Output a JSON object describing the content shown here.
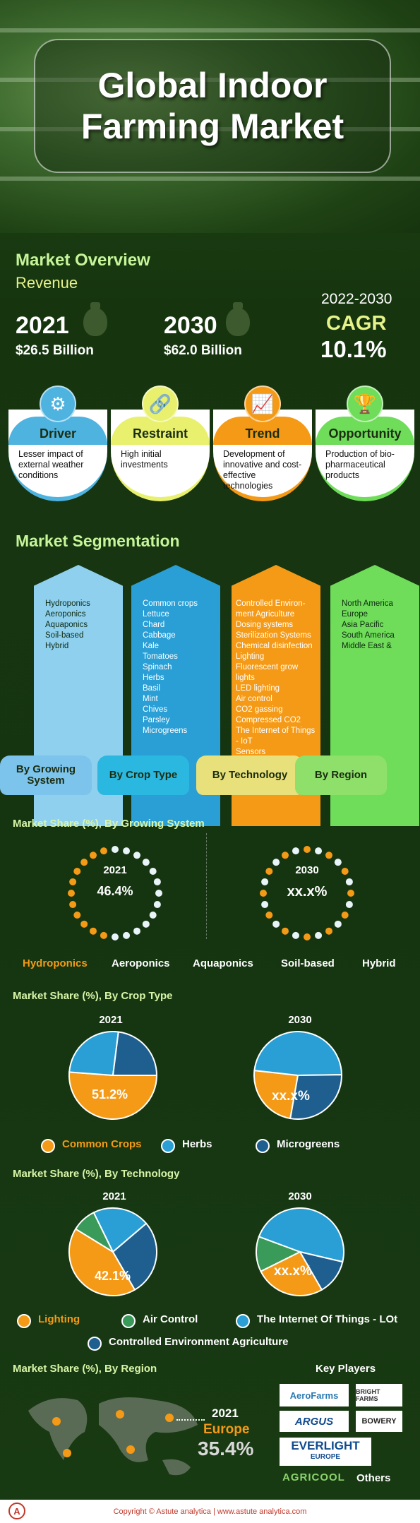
{
  "title": "Global Indoor Farming Market",
  "overview": {
    "heading": "Market Overview",
    "revenue_label": "Revenue",
    "year_a": "2021",
    "value_a": "$26.5  Billion",
    "year_b": "2030",
    "value_b": "$62.0 Billion",
    "period": "2022-2030",
    "cagr_label": "CAGR",
    "cagr_value": "10.1%"
  },
  "dynamics": [
    {
      "label": "Driver",
      "text": "Lesser impact of external weather conditions",
      "color": "#4fb3e0",
      "icon": "gears-icon"
    },
    {
      "label": "Restraint",
      "text": "High initial investments",
      "color": "#e8f06e",
      "icon": "chain-link-icon"
    },
    {
      "label": "Trend",
      "text": "Development of innovative and cost-effective technologies",
      "color": "#f59a16",
      "icon": "growth-chart-icon"
    },
    {
      "label": "Opportunity",
      "text": "Production of bio-pharmaceutical products",
      "color": "#6fdc5a",
      "icon": "trophy-icon"
    }
  ],
  "segmentation": {
    "heading": "Market Segmentation",
    "columns": [
      {
        "tab": "By Growing System",
        "items": [
          "Hydroponics",
          "Aeroponics",
          "Aquaponics",
          "Soil-based",
          "Hybrid"
        ]
      },
      {
        "tab": "By Crop Type",
        "items": [
          "Common crops",
          "Lettuce",
          "Chard",
          "Cabbage",
          "Kale",
          "Tomatoes",
          "Spinach",
          "Herbs",
          "Basil",
          "Mint",
          "Chives",
          "Parsley",
          "Microgreens"
        ]
      },
      {
        "tab": "By Technology",
        "items": [
          "Controlled Environ-",
          "ment Agriculture",
          "Dosing systems",
          "Sterilization Systems",
          "Chemical disinfection",
          "Lighting",
          "Fluorescent grow",
          "lights",
          "LED lighting",
          "Air control",
          "CO2 gassing",
          "Compressed CO2",
          "The Internet of Things",
          "- IoT",
          "Sensors"
        ]
      },
      {
        "tab": "By Region",
        "items": [
          "North America",
          "Europe",
          "Asia Pacific",
          "South America",
          "Middle East &"
        ]
      }
    ]
  },
  "growing": {
    "heading": "Market Share (%), By Growing System",
    "y1": "2021",
    "v1": "46.4%",
    "y2": "2030",
    "v2": "xx.x%",
    "legend": [
      "Hydroponics",
      "Aeroponics",
      "Aquaponics",
      "Soil-based",
      "Hybrid"
    ]
  },
  "crop": {
    "heading": "Market Share (%), By Crop Type",
    "y1": "2021",
    "v1": "51.2%",
    "y2": "2030",
    "v2": "xx.x%",
    "legend": [
      "Common Crops",
      "Herbs",
      "Microgreens"
    ]
  },
  "tech": {
    "heading": "Market Share (%), By Technology",
    "y1": "2021",
    "v1": "42.1%",
    "y2": "2030",
    "v2": "xx.x%",
    "legend": [
      "Lighting",
      "Air Control",
      "The Internet Of Things - LOt",
      "Controlled Environment Agriculture"
    ]
  },
  "region": {
    "heading": "Market Share (%), By Region",
    "year": "2021",
    "name": "Europe",
    "value": "35.4%"
  },
  "key_players": {
    "heading": "Key Players",
    "logos": [
      "AeroFarms",
      "BRIGHT FARMS",
      "ARGUS",
      "BOWERY",
      "EVERLIGHT",
      "EUROPE",
      "AGRICOOL"
    ],
    "others": "Others"
  },
  "footer": "Copyright © Astute analytica | www.astute analytica.com",
  "colors": {
    "orange": "#f59a16",
    "blue": "#2a9fd6",
    "dark_blue": "#1f5f8f",
    "green": "#3a9a5a",
    "light": "#d8f5a8"
  },
  "chart_data": [
    {
      "type": "pie",
      "name": "growing_2021",
      "values": [
        46.4,
        53.6
      ],
      "labels": [
        "Hydroponics",
        "Others"
      ]
    },
    {
      "type": "pie",
      "name": "crop_2021",
      "categories": [
        "Common Crops",
        "Herbs",
        "Microgreens"
      ],
      "values": [
        51.2,
        25.8,
        23.0
      ]
    },
    {
      "type": "pie",
      "name": "crop_2030",
      "categories": [
        "Common Crops",
        "Herbs",
        "Microgreens"
      ],
      "values": [
        24,
        48,
        28
      ]
    },
    {
      "type": "pie",
      "name": "tech_2021",
      "categories": [
        "Lighting",
        "Air Control",
        "The Internet Of Things - LOt",
        "Controlled Environment Agriculture"
      ],
      "values": [
        42.1,
        9,
        21,
        27.9
      ]
    },
    {
      "type": "pie",
      "name": "tech_2030",
      "categories": [
        "Lighting",
        "Air Control",
        "The Internet Of Things - LOt",
        "Controlled Environment Agriculture"
      ],
      "values": [
        26,
        13,
        48,
        13
      ]
    }
  ]
}
